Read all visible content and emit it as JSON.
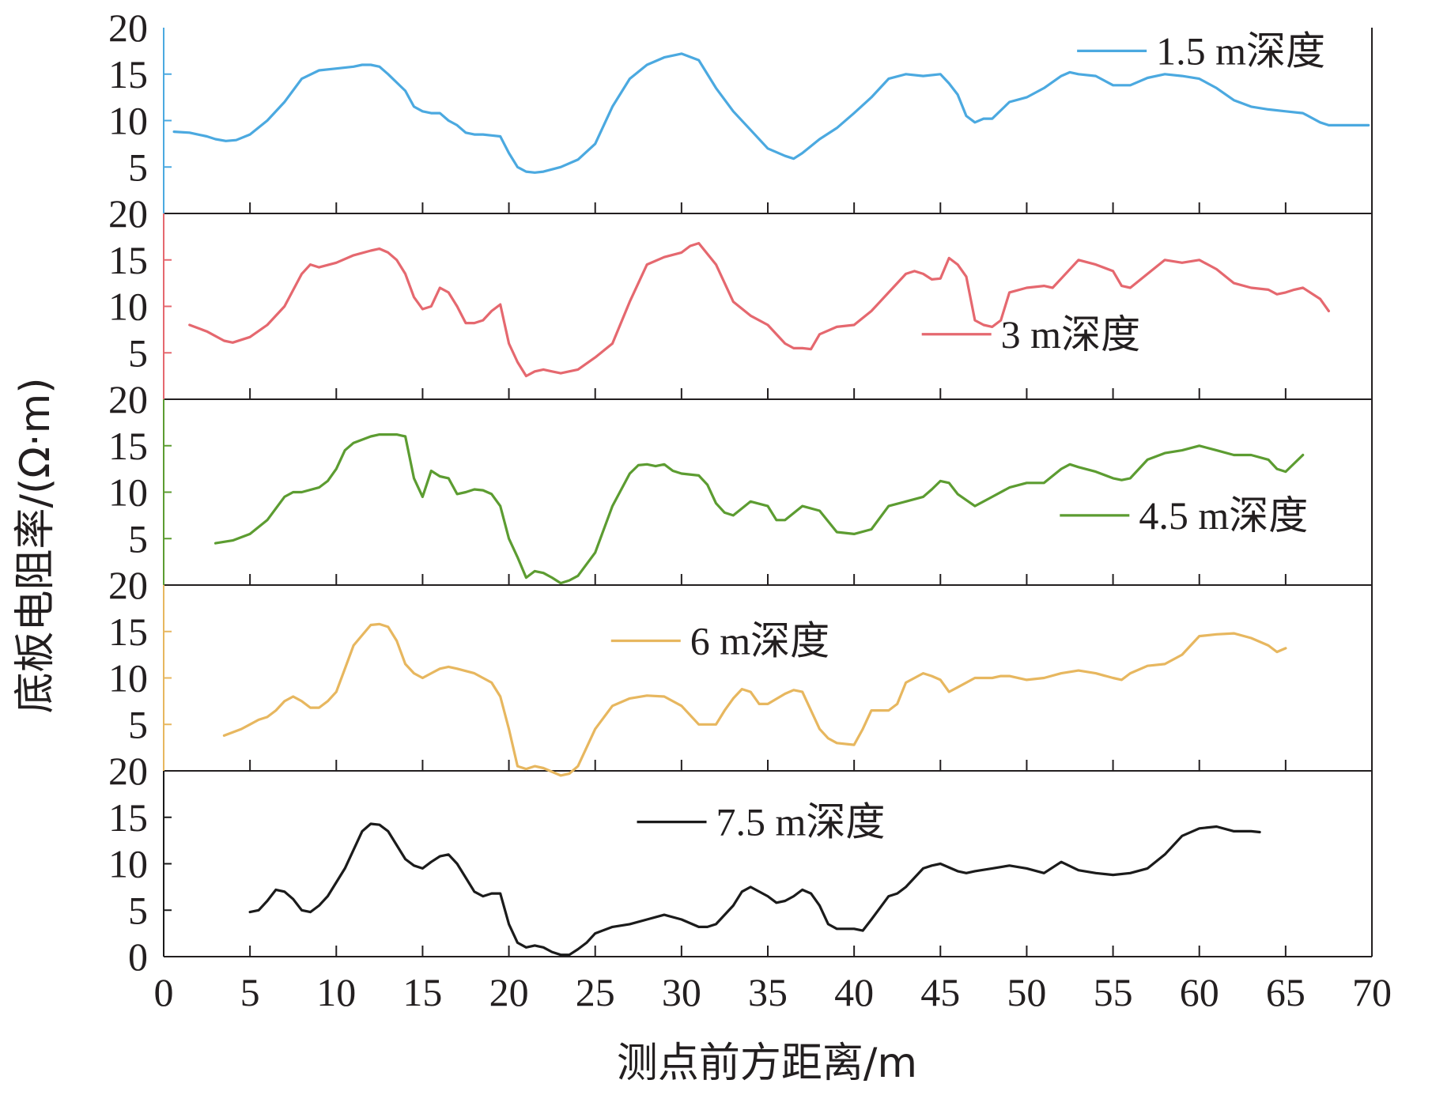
{
  "chart_data": {
    "type": "line",
    "ylabel": "底板电阻率/(Ω·m)",
    "xlabel": "测点前方距离/m",
    "xlim": [
      0,
      70
    ],
    "x_ticks": [
      "0",
      "5",
      "10",
      "15",
      "20",
      "25",
      "30",
      "35",
      "40",
      "45",
      "50",
      "55",
      "60",
      "65",
      "70"
    ],
    "colors": {
      "axis": "#231f20"
    },
    "panels": [
      {
        "name": "1.5 m深度",
        "color": "#4ba9e0",
        "ylim": [
          0,
          20
        ],
        "y_ticks": [
          "20",
          "15",
          "10",
          "5"
        ],
        "legend": {
          "x_data": 57.5,
          "y_data": 17.5
        },
        "x": [
          0.6,
          1.5,
          2.5,
          3.0,
          3.6,
          4.2,
          5.0,
          6.0,
          7.0,
          8.0,
          9.0,
          10.0,
          11.0,
          11.5,
          12.0,
          12.5,
          13.0,
          14.0,
          14.5,
          15.0,
          15.5,
          16.0,
          16.5,
          17.0,
          17.5,
          18.0,
          18.5,
          19.0,
          19.5,
          20.0,
          20.5,
          21.0,
          21.5,
          22.0,
          23.0,
          24.0,
          25.0,
          26.0,
          27.0,
          28.0,
          29.0,
          30.0,
          31.0,
          32.0,
          33.0,
          34.0,
          35.0,
          36.0,
          36.5,
          37.0,
          38.0,
          39.0,
          40.0,
          41.0,
          42.0,
          43.0,
          44.0,
          45.0,
          45.5,
          46.0,
          46.5,
          47.0,
          47.5,
          48.0,
          49.0,
          50.0,
          51.0,
          52.0,
          52.5,
          53.0,
          54.0,
          55.0,
          55.5,
          56.0,
          57.0,
          58.0,
          59.0,
          60.0,
          61.0,
          62.0,
          63.0,
          64.0,
          65.0,
          66.0,
          67.0,
          67.5,
          68.0,
          69.0,
          69.8
        ],
        "y": [
          8.8,
          8.7,
          8.3,
          8.0,
          7.8,
          7.9,
          8.5,
          10.0,
          12.0,
          14.5,
          15.4,
          15.6,
          15.8,
          16.0,
          16.0,
          15.8,
          15.0,
          13.2,
          11.5,
          11.0,
          10.8,
          10.8,
          10.0,
          9.5,
          8.7,
          8.5,
          8.5,
          8.4,
          8.3,
          6.5,
          5.0,
          4.5,
          4.4,
          4.5,
          5.0,
          5.8,
          7.5,
          11.5,
          14.5,
          16.0,
          16.8,
          17.2,
          16.5,
          13.5,
          11.0,
          9.0,
          7.0,
          6.2,
          5.9,
          6.5,
          8.0,
          9.2,
          10.8,
          12.5,
          14.5,
          15.0,
          14.8,
          15.0,
          14.0,
          12.8,
          10.5,
          9.8,
          10.2,
          10.2,
          12.0,
          12.5,
          13.5,
          14.8,
          15.2,
          15.0,
          14.8,
          13.8,
          13.8,
          13.8,
          14.6,
          15.0,
          14.8,
          14.5,
          13.5,
          12.2,
          11.5,
          11.2,
          11.0,
          10.8,
          9.8,
          9.5,
          9.5,
          9.5,
          9.5
        ]
      },
      {
        "name": "3 m深度",
        "color": "#e5686f",
        "ylim": [
          0,
          20
        ],
        "y_ticks": [
          "20",
          "15",
          "10",
          "5"
        ],
        "legend": {
          "x_data": 48.5,
          "y_data": 7.0
        },
        "x": [
          1.5,
          2.5,
          3.5,
          4.0,
          5.0,
          6.0,
          7.0,
          8.0,
          8.5,
          9.0,
          10.0,
          11.0,
          12.0,
          12.5,
          13.0,
          13.5,
          14.0,
          14.5,
          15.0,
          15.5,
          16.0,
          16.5,
          17.0,
          17.5,
          18.0,
          18.5,
          19.0,
          19.5,
          20.0,
          20.5,
          21.0,
          21.5,
          22.0,
          22.5,
          23.0,
          24.0,
          25.0,
          26.0,
          27.0,
          28.0,
          29.0,
          30.0,
          30.5,
          31.0,
          32.0,
          33.0,
          34.0,
          35.0,
          36.0,
          36.5,
          37.0,
          37.5,
          38.0,
          39.0,
          40.0,
          41.0,
          42.0,
          43.0,
          43.5,
          44.0,
          44.5,
          45.0,
          45.5,
          46.0,
          46.5,
          47.0,
          47.5,
          48.0,
          48.5,
          49.0,
          50.0,
          51.0,
          51.5,
          52.0,
          53.0,
          54.0,
          55.0,
          55.5,
          56.0,
          57.0,
          58.0,
          59.0,
          60.0,
          61.0,
          62.0,
          63.0,
          64.0,
          64.5,
          65.0,
          65.5,
          66.0,
          67.0,
          67.5
        ],
        "y": [
          8.0,
          7.3,
          6.3,
          6.1,
          6.7,
          8.0,
          10.0,
          13.5,
          14.5,
          14.2,
          14.7,
          15.5,
          16.0,
          16.2,
          15.8,
          15.0,
          13.5,
          11.0,
          9.7,
          10.0,
          12.0,
          11.5,
          10.0,
          8.2,
          8.2,
          8.5,
          9.5,
          10.2,
          6.0,
          4.0,
          2.5,
          3.0,
          3.2,
          3.0,
          2.8,
          3.2,
          4.5,
          6.0,
          10.5,
          14.5,
          15.3,
          15.8,
          16.5,
          16.8,
          14.5,
          10.5,
          9.0,
          8.0,
          6.0,
          5.5,
          5.5,
          5.4,
          7.0,
          7.8,
          8.0,
          9.5,
          11.5,
          13.5,
          13.8,
          13.5,
          12.9,
          13.0,
          15.2,
          14.5,
          13.2,
          8.5,
          8.0,
          7.8,
          8.5,
          11.5,
          12.0,
          12.2,
          12.0,
          13.0,
          15.0,
          14.5,
          13.8,
          12.2,
          12.0,
          13.5,
          15.0,
          14.7,
          15.0,
          14.0,
          12.5,
          12.0,
          11.8,
          11.3,
          11.5,
          11.8,
          12.0,
          10.8,
          9.5
        ]
      },
      {
        "name": "4.5 m深度",
        "color": "#5c9c31",
        "ylim": [
          0,
          20
        ],
        "y_ticks": [
          "20",
          "15",
          "10",
          "5"
        ],
        "legend": {
          "x_data": 56.5,
          "y_data": 7.5
        },
        "x": [
          3.0,
          4.0,
          5.0,
          6.0,
          7.0,
          7.5,
          8.0,
          9.0,
          9.5,
          10.0,
          10.5,
          11.0,
          12.0,
          12.5,
          13.0,
          13.5,
          14.0,
          14.5,
          15.0,
          15.5,
          16.0,
          16.5,
          17.0,
          17.5,
          18.0,
          18.5,
          19.0,
          19.5,
          20.0,
          20.5,
          21.0,
          21.5,
          22.0,
          22.5,
          23.0,
          23.5,
          24.0,
          25.0,
          26.0,
          27.0,
          27.5,
          28.0,
          28.5,
          29.0,
          29.5,
          30.0,
          31.0,
          31.5,
          32.0,
          32.5,
          33.0,
          34.0,
          35.0,
          35.5,
          36.0,
          37.0,
          38.0,
          39.0,
          40.0,
          41.0,
          42.0,
          43.0,
          44.0,
          44.5,
          45.0,
          45.5,
          46.0,
          47.0,
          48.0,
          49.0,
          50.0,
          51.0,
          52.0,
          52.5,
          53.0,
          54.0,
          55.0,
          55.5,
          56.0,
          57.0,
          58.0,
          59.0,
          60.0,
          61.0,
          62.0,
          63.0,
          64.0,
          64.5,
          65.0,
          66.0
        ],
        "y": [
          4.5,
          4.8,
          5.5,
          7.0,
          9.5,
          10.0,
          10.0,
          10.5,
          11.2,
          12.5,
          14.5,
          15.3,
          16.0,
          16.2,
          16.2,
          16.2,
          16.0,
          11.5,
          9.5,
          12.3,
          11.7,
          11.5,
          9.8,
          10.0,
          10.3,
          10.2,
          9.8,
          8.5,
          5.0,
          3.0,
          0.8,
          1.5,
          1.3,
          0.8,
          0.2,
          0.5,
          1.0,
          3.5,
          8.5,
          12.0,
          12.9,
          13.0,
          12.8,
          13.0,
          12.3,
          12.0,
          11.8,
          10.8,
          8.8,
          7.8,
          7.5,
          9.0,
          8.5,
          7.0,
          7.0,
          8.5,
          8.0,
          5.7,
          5.5,
          6.0,
          8.5,
          9.0,
          9.5,
          10.3,
          11.2,
          11.0,
          9.8,
          8.5,
          9.5,
          10.5,
          11.0,
          11.0,
          12.5,
          13.0,
          12.7,
          12.2,
          11.5,
          11.3,
          11.5,
          13.5,
          14.2,
          14.5,
          15.0,
          14.5,
          14.0,
          14.0,
          13.5,
          12.5,
          12.2,
          14.0
        ]
      },
      {
        "name": "6 m深度",
        "color": "#e7b75f",
        "ylim": [
          0,
          20
        ],
        "y_ticks": [
          "20",
          "15",
          "10",
          "5"
        ],
        "legend": {
          "x_data": 30.5,
          "y_data": 14.0
        },
        "x": [
          3.5,
          4.5,
          5.0,
          5.5,
          6.0,
          6.5,
          7.0,
          7.5,
          8.0,
          8.5,
          9.0,
          9.5,
          10.0,
          10.5,
          11.0,
          12.0,
          12.5,
          13.0,
          13.5,
          14.0,
          14.5,
          15.0,
          15.5,
          16.0,
          16.5,
          17.0,
          18.0,
          19.0,
          19.5,
          20.0,
          20.5,
          21.0,
          21.5,
          22.0,
          23.0,
          23.5,
          24.0,
          25.0,
          26.0,
          27.0,
          28.0,
          29.0,
          30.0,
          31.0,
          32.0,
          32.5,
          33.0,
          33.5,
          34.0,
          34.5,
          35.0,
          36.0,
          36.5,
          37.0,
          38.0,
          38.5,
          39.0,
          40.0,
          40.5,
          41.0,
          42.0,
          42.5,
          43.0,
          44.0,
          44.5,
          45.0,
          45.5,
          46.0,
          47.0,
          48.0,
          48.5,
          49.0,
          50.0,
          51.0,
          52.0,
          53.0,
          54.0,
          55.0,
          55.5,
          56.0,
          57.0,
          58.0,
          59.0,
          60.0,
          61.0,
          62.0,
          63.0,
          64.0,
          64.5,
          65.0
        ],
        "y": [
          3.8,
          4.5,
          5.0,
          5.5,
          5.8,
          6.5,
          7.5,
          8.0,
          7.5,
          6.8,
          6.8,
          7.5,
          8.5,
          11.0,
          13.5,
          15.7,
          15.8,
          15.5,
          14.0,
          11.5,
          10.5,
          10.0,
          10.5,
          11.0,
          11.2,
          11.0,
          10.5,
          9.5,
          8.0,
          4.5,
          0.5,
          0.2,
          0.5,
          0.3,
          -0.5,
          -0.3,
          0.5,
          4.5,
          7.0,
          7.8,
          8.1,
          8.0,
          7.0,
          5.0,
          5.0,
          6.5,
          7.8,
          8.8,
          8.5,
          7.2,
          7.2,
          8.3,
          8.7,
          8.5,
          4.5,
          3.5,
          3.0,
          2.8,
          4.5,
          6.5,
          6.5,
          7.2,
          9.5,
          10.5,
          10.2,
          9.8,
          8.5,
          9.0,
          10.0,
          10.0,
          10.2,
          10.2,
          9.8,
          10.0,
          10.5,
          10.8,
          10.5,
          10.0,
          9.8,
          10.5,
          11.3,
          11.5,
          12.5,
          14.5,
          14.7,
          14.8,
          14.3,
          13.5,
          12.8,
          13.2
        ]
      },
      {
        "name": "7.5 m深度",
        "color": "#1b1b1b",
        "ylim": [
          0,
          20
        ],
        "y_ticks": [
          "20",
          "15",
          "10",
          "5",
          "0"
        ],
        "legend": {
          "x_data": 32.0,
          "y_data": 14.5
        },
        "x": [
          5.0,
          5.5,
          6.0,
          6.5,
          7.0,
          7.5,
          8.0,
          8.5,
          9.0,
          9.5,
          10.0,
          10.5,
          11.0,
          11.5,
          12.0,
          12.5,
          13.0,
          13.5,
          14.0,
          14.5,
          15.0,
          15.5,
          16.0,
          16.5,
          17.0,
          17.5,
          18.0,
          18.5,
          19.0,
          19.5,
          20.0,
          20.5,
          21.0,
          21.5,
          22.0,
          22.5,
          23.0,
          23.5,
          24.0,
          24.5,
          25.0,
          26.0,
          27.0,
          28.0,
          29.0,
          30.0,
          31.0,
          31.5,
          32.0,
          33.0,
          33.5,
          34.0,
          35.0,
          35.5,
          36.0,
          36.5,
          37.0,
          37.5,
          38.0,
          38.5,
          39.0,
          40.0,
          40.5,
          41.0,
          42.0,
          42.5,
          43.0,
          44.0,
          44.5,
          45.0,
          46.0,
          46.5,
          47.0,
          48.0,
          49.0,
          50.0,
          51.0,
          52.0,
          53.0,
          54.0,
          55.0,
          56.0,
          57.0,
          58.0,
          59.0,
          60.0,
          61.0,
          62.0,
          63.0,
          63.5
        ],
        "y": [
          4.8,
          5.0,
          6.0,
          7.2,
          7.0,
          6.2,
          5.0,
          4.8,
          5.5,
          6.5,
          8.0,
          9.5,
          11.5,
          13.5,
          14.3,
          14.2,
          13.5,
          12.0,
          10.5,
          9.8,
          9.5,
          10.2,
          10.8,
          11.0,
          10.0,
          8.5,
          7.0,
          6.5,
          6.8,
          6.8,
          3.5,
          1.5,
          1.0,
          1.2,
          1.0,
          0.5,
          0.2,
          0.2,
          0.8,
          1.5,
          2.5,
          3.2,
          3.5,
          4.0,
          4.5,
          4.0,
          3.2,
          3.2,
          3.5,
          5.5,
          7.0,
          7.5,
          6.5,
          5.8,
          6.0,
          6.5,
          7.2,
          6.8,
          5.5,
          3.5,
          3.0,
          3.0,
          2.8,
          4.0,
          6.5,
          6.8,
          7.5,
          9.5,
          9.8,
          10.0,
          9.2,
          9.0,
          9.2,
          9.5,
          9.8,
          9.5,
          9.0,
          10.2,
          9.3,
          9.0,
          8.8,
          9.0,
          9.5,
          11.0,
          13.0,
          13.8,
          14.0,
          13.5,
          13.5,
          13.4
        ]
      }
    ]
  }
}
